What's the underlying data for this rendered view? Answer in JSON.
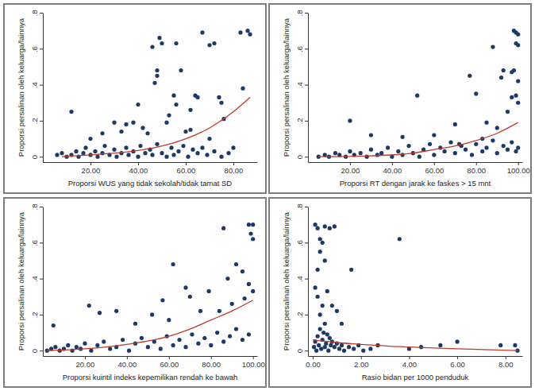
{
  "chart_data": [
    {
      "type": "scatter",
      "x_label": "Proporsi WUS yang tidak sekolah/tidak tamat SD",
      "y_label": "Proporsi persalinan oleh keluarga/lainnya",
      "xlim": [
        0,
        90
      ],
      "ylim": [
        -0.03,
        0.8
      ],
      "xticks": [
        {
          "value": 20,
          "label": "20.00"
        },
        {
          "value": 40,
          "label": "40.00"
        },
        {
          "value": 60,
          "label": "60.00"
        },
        {
          "value": 80,
          "label": "80.00"
        }
      ],
      "yticks": [
        0,
        {
          "value": 0.2,
          "label": ".2"
        },
        {
          "value": 0.4,
          "label": ".4"
        },
        {
          "value": 0.6,
          "label": ".6"
        },
        {
          "value": 0.8,
          "label": ".8"
        }
      ],
      "series": [
        {
          "type": "scatter",
          "marker": "circle",
          "color": "#1c3a66",
          "x": [
            6,
            8,
            10,
            12,
            14,
            15,
            17,
            18,
            20,
            22,
            23,
            25,
            26,
            28,
            30,
            31,
            33,
            35,
            36,
            38,
            40,
            41,
            43,
            45,
            46,
            48,
            50,
            52,
            54,
            55,
            57,
            59,
            61,
            63,
            65,
            67,
            69,
            72,
            75,
            78,
            12,
            20,
            25,
            30,
            33,
            35,
            38,
            40,
            42,
            44,
            46,
            47,
            48,
            48,
            49,
            50,
            52,
            53,
            55,
            56,
            56,
            58,
            60,
            62,
            62,
            64,
            65,
            67,
            70,
            70,
            72,
            74,
            75,
            76,
            80,
            84,
            83,
            86,
            87
          ],
          "values": [
            0.01,
            0.02,
            0,
            0.01,
            0.03,
            0,
            0.02,
            0.05,
            0.01,
            0.03,
            0,
            0.02,
            0.06,
            0.01,
            0.04,
            0,
            0.02,
            0.05,
            0.01,
            0.03,
            0,
            0.06,
            0.02,
            0.04,
            0.01,
            0.07,
            0.02,
            0,
            0.05,
            0.01,
            0.03,
            0.06,
            0,
            0.04,
            0.02,
            0.05,
            0.01,
            0.03,
            0,
            0.02,
            0.25,
            0.1,
            0.13,
            0.19,
            0.14,
            0.18,
            0.19,
            0.29,
            0.16,
            0.13,
            0.61,
            0.41,
            0.45,
            0.48,
            0.66,
            0.63,
            0.19,
            0.23,
            0.34,
            0.29,
            0.63,
            0.48,
            0.14,
            0.26,
            0.15,
            0.34,
            0.33,
            0.69,
            0.62,
            0.1,
            0.63,
            0.33,
            0.3,
            0.21,
            0.05,
            0.38,
            0.69,
            0.7,
            0.68
          ]
        },
        {
          "type": "line",
          "line_style": "solid",
          "color": "#c0392b",
          "x": [
            8,
            20,
            30,
            40,
            50,
            60,
            70,
            80,
            87
          ],
          "values": [
            0.0,
            0.01,
            0.02,
            0.035,
            0.06,
            0.1,
            0.16,
            0.25,
            0.33
          ]
        }
      ]
    },
    {
      "type": "scatter",
      "x_label": "Proporsi RT dengan jarak ke faskes > 15 mnt",
      "y_label": "Proporsi persalinan oleh keluarga/lainnya",
      "xlim": [
        0,
        102
      ],
      "ylim": [
        -0.03,
        0.8
      ],
      "xticks": [
        {
          "value": 20,
          "label": "20.00"
        },
        {
          "value": 40,
          "label": "40.00"
        },
        {
          "value": 60,
          "label": "60.00"
        },
        {
          "value": 80,
          "label": "80.00"
        },
        {
          "value": 100,
          "label": "100.00"
        }
      ],
      "yticks": [
        0,
        {
          "value": 0.2,
          "label": ".2"
        },
        {
          "value": 0.4,
          "label": ".4"
        },
        {
          "value": 0.6,
          "label": ".6"
        },
        {
          "value": 0.8,
          "label": ".8"
        }
      ],
      "series": [
        {
          "type": "scatter",
          "marker": "circle",
          "color": "#1c3a66",
          "x": [
            5,
            8,
            10,
            13,
            15,
            18,
            20,
            22,
            25,
            28,
            30,
            33,
            35,
            38,
            40,
            43,
            45,
            48,
            50,
            53,
            55,
            58,
            60,
            63,
            65,
            68,
            70,
            73,
            75,
            78,
            80,
            83,
            85,
            88,
            90,
            93,
            95,
            97,
            99,
            100,
            20,
            30,
            45,
            52,
            60,
            70,
            72,
            77,
            80,
            83,
            85,
            88,
            90,
            92,
            93,
            95,
            97,
            97,
            98,
            98,
            99,
            99,
            99,
            100,
            100,
            100,
            100
          ],
          "values": [
            0,
            0.01,
            0,
            0.02,
            0.01,
            0,
            0.03,
            0.01,
            0.02,
            0,
            0.04,
            0.01,
            0.02,
            0.05,
            0,
            0.03,
            0.01,
            0.06,
            0.02,
            0,
            0.04,
            0.07,
            0.01,
            0.05,
            0.03,
            0.08,
            0.02,
            0.06,
            0.04,
            0.01,
            0.07,
            0.03,
            0.05,
            0.09,
            0.02,
            0.06,
            0.04,
            0.08,
            0.03,
            0.05,
            0.2,
            0.12,
            0.11,
            0.34,
            0.12,
            0.18,
            0.07,
            0.45,
            0.35,
            0.1,
            0.19,
            0.61,
            0.16,
            0.44,
            0.48,
            0.25,
            0.47,
            0.33,
            0.7,
            0.48,
            0.69,
            0.63,
            0.34,
            0.68,
            0.62,
            0.42,
            0.3
          ]
        },
        {
          "type": "line",
          "line_style": "solid",
          "color": "#c0392b",
          "x": [
            5,
            30,
            50,
            60,
            70,
            80,
            90,
            100
          ],
          "values": [
            0.0,
            0.005,
            0.02,
            0.04,
            0.06,
            0.09,
            0.13,
            0.19
          ]
        }
      ]
    },
    {
      "type": "scatter",
      "x_label": "Proporsi kuintil indeks kepemilikan rendah ke bawah",
      "y_label": "Proporsi persalinan oleh keluarga/lainnya",
      "xlim": [
        0,
        102
      ],
      "ylim": [
        -0.03,
        0.8
      ],
      "xticks": [
        {
          "value": 20,
          "label": "20.00"
        },
        {
          "value": 40,
          "label": "40.00"
        },
        {
          "value": 60,
          "label": "60.00"
        },
        {
          "value": 80,
          "label": "80.00"
        },
        {
          "value": 100,
          "label": "100.00"
        }
      ],
      "yticks": [
        0,
        {
          "value": 0.2,
          "label": ".2"
        },
        {
          "value": 0.4,
          "label": ".4"
        },
        {
          "value": 0.6,
          "label": ".6"
        },
        {
          "value": 0.8,
          "label": ".8"
        }
      ],
      "series": [
        {
          "type": "scatter",
          "marker": "circle",
          "color": "#1c3a66",
          "x": [
            2,
            4,
            6,
            8,
            10,
            12,
            14,
            16,
            18,
            20,
            23,
            26,
            29,
            32,
            35,
            38,
            41,
            44,
            47,
            50,
            53,
            56,
            59,
            62,
            65,
            68,
            71,
            74,
            77,
            80,
            83,
            86,
            89,
            92,
            95,
            98,
            5,
            22,
            27,
            35,
            44,
            52,
            57,
            60,
            62,
            68,
            70,
            75,
            79,
            84,
            86,
            88,
            90,
            92,
            95,
            96,
            98,
            98,
            99,
            100,
            100,
            100
          ],
          "values": [
            0,
            0.01,
            0.02,
            0,
            0.01,
            0.03,
            0,
            0.02,
            0.01,
            0.04,
            0,
            0.03,
            0.05,
            0.01,
            0.02,
            0.06,
            0,
            0.04,
            0.07,
            0.02,
            0.05,
            0.01,
            0.08,
            0.03,
            0.06,
            0.02,
            0.09,
            0.04,
            0.07,
            0.03,
            0.1,
            0.05,
            0.08,
            0.12,
            0.06,
            0.09,
            0.14,
            0.25,
            0.21,
            0.22,
            0.15,
            0.2,
            0.28,
            0.17,
            0.48,
            0.35,
            0.3,
            0.22,
            0.33,
            0.22,
            0.68,
            0.4,
            0.26,
            0.48,
            0.44,
            0.29,
            0.7,
            0.37,
            0.65,
            0.7,
            0.62,
            0.33
          ]
        },
        {
          "type": "line",
          "line_style": "solid",
          "color": "#c0392b",
          "x": [
            2,
            20,
            40,
            60,
            70,
            80,
            90,
            100
          ],
          "values": [
            0.0,
            0.01,
            0.035,
            0.08,
            0.12,
            0.17,
            0.22,
            0.28
          ]
        }
      ]
    },
    {
      "type": "scatter",
      "x_label": "Rasio bidan per 1000 penduduk",
      "y_label": "Proporsi persalinan oleh keluarga/lainnya",
      "xlim": [
        -0.2,
        8.7
      ],
      "ylim": [
        -0.03,
        0.8
      ],
      "xticks": [
        {
          "value": 0,
          "label": "0.00"
        },
        {
          "value": 2,
          "label": "2.00"
        },
        {
          "value": 4,
          "label": "4.00"
        },
        {
          "value": 6,
          "label": "6.00"
        },
        {
          "value": 8,
          "label": "8.00"
        }
      ],
      "yticks": [
        0,
        {
          "value": 0.2,
          "label": ".2"
        },
        {
          "value": 0.4,
          "label": ".4"
        },
        {
          "value": 0.6,
          "label": ".6"
        },
        {
          "value": 0.8,
          "label": ".8"
        }
      ],
      "series": [
        {
          "type": "scatter",
          "marker": "circle",
          "color": "#1c3a66",
          "x": [
            0.05,
            0.1,
            0.15,
            0.2,
            0.25,
            0.3,
            0.35,
            0.4,
            0.45,
            0.5,
            0.55,
            0.6,
            0.65,
            0.7,
            0.75,
            0.8,
            0.9,
            1.0,
            1.1,
            1.2,
            1.3,
            1.5,
            1.7,
            1.9,
            2.1,
            2.4,
            0.1,
            0.2,
            0.3,
            0.4,
            0.5,
            0.7,
            0.9,
            0.3,
            0.5,
            0.2,
            1.6,
            3.6,
            0.1,
            0.2,
            0.6,
            0.4,
            0.8,
            1.0,
            0.3,
            1.2,
            0.5,
            2.7,
            4.0,
            4.5,
            5.3,
            6.0,
            7.8,
            8.4,
            8.5
          ],
          "values": [
            0.02,
            0.05,
            0,
            0.08,
            0.03,
            0.12,
            0.01,
            0.06,
            0.1,
            0.02,
            0.04,
            0.09,
            0,
            0.07,
            0.03,
            0.05,
            0.02,
            0.04,
            0.01,
            0.03,
            0,
            0.02,
            0.01,
            0.03,
            0,
            0.01,
            0.7,
            0.68,
            0.62,
            0.6,
            0.69,
            0.68,
            0.69,
            0.55,
            0.5,
            0.45,
            0.45,
            0.62,
            0.35,
            0.3,
            0.33,
            0.25,
            0.25,
            0.22,
            0.2,
            0.15,
            0.15,
            0.03,
            0.01,
            0.02,
            0.03,
            0.05,
            0.03,
            0.03,
            0
          ]
        },
        {
          "type": "line",
          "line_style": "solid",
          "color": "#c0392b",
          "x": [
            0,
            1,
            2,
            4,
            6,
            8.5
          ],
          "values": [
            0.06,
            0.045,
            0.035,
            0.02,
            0.01,
            0.0
          ]
        }
      ]
    }
  ]
}
